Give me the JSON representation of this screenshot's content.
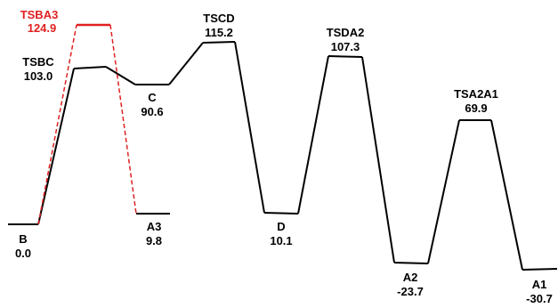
{
  "colors": {
    "main": "#000000",
    "alt": "#e02020"
  },
  "states": [
    {
      "id": "B",
      "name": "B",
      "energy": "0.0",
      "kind": "minimum",
      "path": "main"
    },
    {
      "id": "TSBC",
      "name": "TSBC",
      "energy": "103.0",
      "kind": "ts",
      "path": "main"
    },
    {
      "id": "C",
      "name": "C",
      "energy": "90.6",
      "kind": "minimum",
      "path": "main"
    },
    {
      "id": "TSCD",
      "name": "TSCD",
      "energy": "115.2",
      "kind": "ts",
      "path": "main"
    },
    {
      "id": "D",
      "name": "D",
      "energy": "10.1",
      "kind": "minimum",
      "path": "main"
    },
    {
      "id": "TSDA2",
      "name": "TSDA2",
      "energy": "107.3",
      "kind": "ts",
      "path": "main"
    },
    {
      "id": "A2",
      "name": "A2",
      "energy": "-23.7",
      "kind": "minimum",
      "path": "main"
    },
    {
      "id": "TSA2A1",
      "name": "TSA2A1",
      "energy": "69.9",
      "kind": "ts",
      "path": "main"
    },
    {
      "id": "A1",
      "name": "A1",
      "energy": "-30.7",
      "kind": "minimum",
      "path": "main"
    },
    {
      "id": "TSBA3",
      "name": "TSBA3",
      "energy": "124.9",
      "kind": "ts",
      "path": "alt"
    },
    {
      "id": "A3",
      "name": "A3",
      "energy": "9.8",
      "kind": "minimum",
      "path": "alt"
    }
  ]
}
